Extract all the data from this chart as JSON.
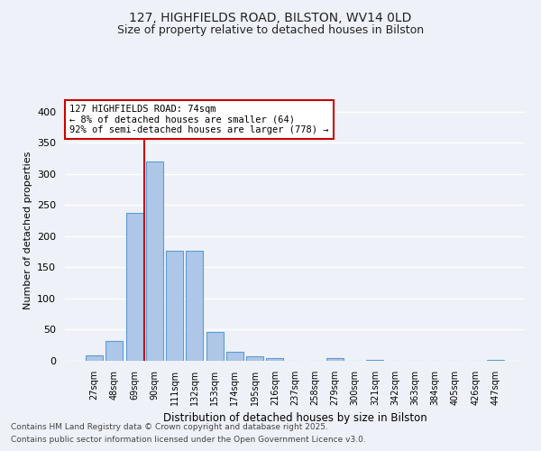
{
  "title1": "127, HIGHFIELDS ROAD, BILSTON, WV14 0LD",
  "title2": "Size of property relative to detached houses in Bilston",
  "xlabel": "Distribution of detached houses by size in Bilston",
  "ylabel": "Number of detached properties",
  "categories": [
    "27sqm",
    "48sqm",
    "69sqm",
    "90sqm",
    "111sqm",
    "132sqm",
    "153sqm",
    "174sqm",
    "195sqm",
    "216sqm",
    "237sqm",
    "258sqm",
    "279sqm",
    "300sqm",
    "321sqm",
    "342sqm",
    "363sqm",
    "384sqm",
    "405sqm",
    "426sqm",
    "447sqm"
  ],
  "values": [
    8,
    32,
    238,
    320,
    177,
    177,
    46,
    15,
    7,
    4,
    0,
    0,
    5,
    0,
    2,
    0,
    0,
    0,
    0,
    0,
    2
  ],
  "bar_color": "#aec6e8",
  "bar_edge_color": "#5b9bd5",
  "vline_x": 2.5,
  "vline_color": "#cc0000",
  "annotation_text": "127 HIGHFIELDS ROAD: 74sqm\n← 8% of detached houses are smaller (64)\n92% of semi-detached houses are larger (778) →",
  "annotation_box_color": "#ffffff",
  "annotation_box_edge_color": "#cc0000",
  "footer1": "Contains HM Land Registry data © Crown copyright and database right 2025.",
  "footer2": "Contains public sector information licensed under the Open Government Licence v3.0.",
  "bg_color": "#eef2f8",
  "plot_bg_color": "#eef2f8",
  "grid_color": "#ffffff",
  "ylim": [
    0,
    420
  ],
  "yticks": [
    0,
    50,
    100,
    150,
    200,
    250,
    300,
    350,
    400
  ],
  "figsize": [
    6.0,
    5.0
  ],
  "dpi": 100
}
